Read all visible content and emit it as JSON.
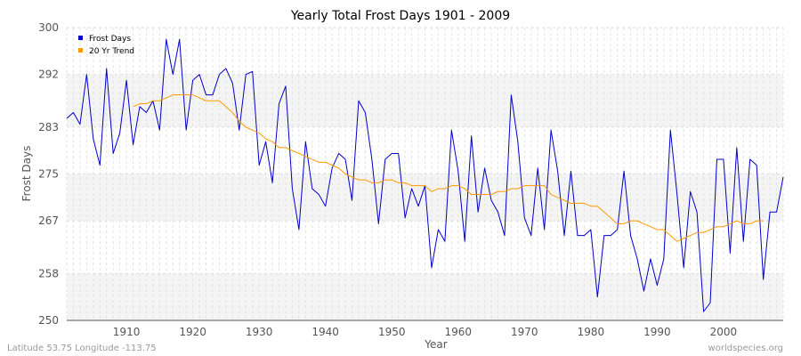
{
  "chart_data": {
    "type": "line",
    "title": "Yearly Total Frost Days 1901 - 2009",
    "xlabel": "Year",
    "ylabel": "Frost Days",
    "xlim": [
      1901,
      2009
    ],
    "ylim": [
      250,
      300
    ],
    "x_ticks": [
      1910,
      1920,
      1930,
      1940,
      1950,
      1960,
      1970,
      1980,
      1990,
      2000
    ],
    "y_ticks": [
      250,
      258,
      267,
      275,
      283,
      292,
      300
    ],
    "grid": true,
    "legend_position": "top-left",
    "series": [
      {
        "name": "Frost Days",
        "color": "#0000cc",
        "x_start": 1901,
        "values": [
          284.5,
          285.5,
          283.5,
          292,
          281,
          276.5,
          293,
          278.5,
          282,
          291,
          280,
          286.5,
          285.5,
          287.5,
          282.5,
          298,
          292,
          298,
          282.5,
          291,
          292,
          288.5,
          288.5,
          292,
          293,
          290.5,
          282.5,
          292,
          292.5,
          276.5,
          280.5,
          273.5,
          287,
          290,
          272.5,
          265.5,
          280.5,
          272.5,
          271.5,
          269.5,
          276,
          278.5,
          277.5,
          270.5,
          287.5,
          285.5,
          277.5,
          266.5,
          277.5,
          278.5,
          278.5,
          267.5,
          272.5,
          269.5,
          273,
          259,
          265.5,
          263.5,
          282.5,
          275.5,
          263.5,
          281.5,
          268.5,
          276,
          270.5,
          268.5,
          264.5,
          288.5,
          280.5,
          267.5,
          264.5,
          276,
          265.5,
          282.5,
          275.5,
          264.5,
          275.5,
          264.5,
          264.5,
          265.5,
          254,
          264.5,
          264.5,
          265.5,
          275.5,
          264.5,
          260.5,
          255,
          260.5,
          256,
          260.5,
          282.5,
          271.5,
          259,
          272,
          268.5,
          251.5,
          253,
          277.5,
          277.5,
          261.5,
          279.5,
          263.5,
          277.5,
          276.5,
          257,
          268.5,
          268.5,
          274.5
        ]
      },
      {
        "name": "20 Yr Trend",
        "color": "#ff9900",
        "x_start": 1911,
        "values": [
          286.5,
          287,
          287,
          287.5,
          287.5,
          288,
          288.5,
          288.5,
          288.5,
          288.5,
          288,
          287.5,
          287.5,
          287.5,
          286.5,
          285.5,
          284,
          283,
          282.5,
          282,
          281,
          280.5,
          279.5,
          279.5,
          279,
          278.5,
          278,
          277.5,
          277,
          277,
          276.5,
          276,
          275,
          274.5,
          274,
          274,
          273.5,
          273.5,
          274,
          274,
          273.5,
          273.5,
          273,
          273,
          273,
          272,
          272.5,
          272.5,
          273,
          273,
          272.5,
          271.5,
          271.5,
          271.5,
          271.5,
          272,
          272,
          272.5,
          272.5,
          273,
          273,
          273,
          273,
          271.5,
          271,
          270.5,
          270,
          270,
          270,
          269.5,
          269.5,
          268.5,
          267.5,
          266.5,
          266.5,
          267,
          267,
          266.5,
          266,
          265.5,
          265.5,
          264.5,
          263.5,
          264,
          264.5,
          265,
          265,
          265.5,
          266,
          266,
          266.5,
          267,
          266.5,
          266.5,
          267,
          267
        ]
      }
    ]
  },
  "footer": {
    "location": "Latitude 53.75 Longitude -113.75",
    "source": "worldspecies.org"
  }
}
